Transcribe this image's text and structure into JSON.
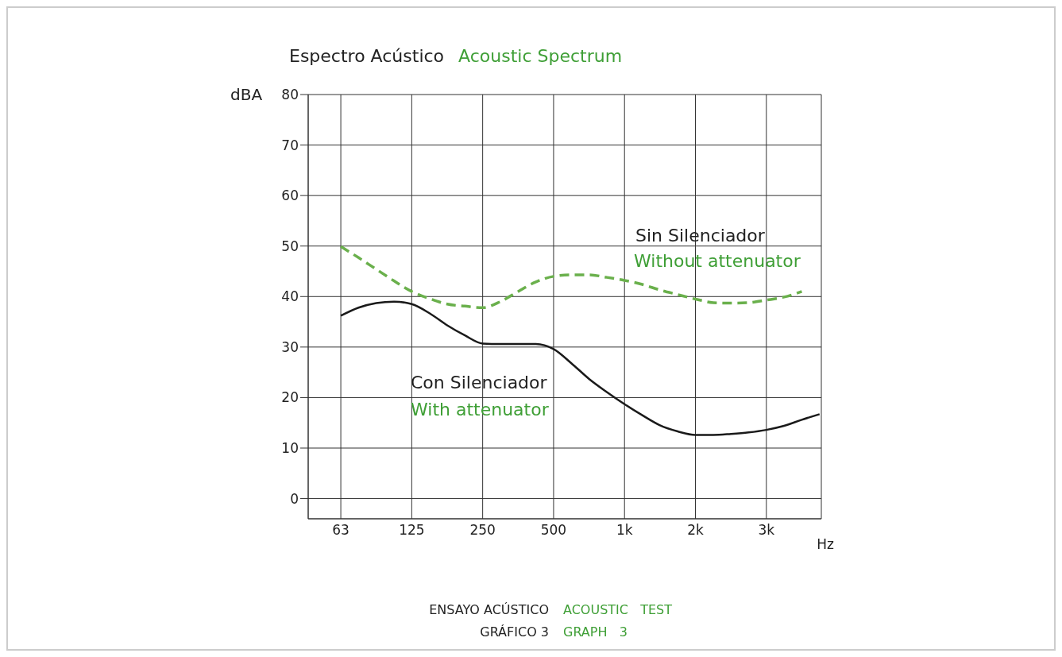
{
  "chart_data": {
    "type": "line",
    "title": "Espectro Acústico",
    "subtitle": "Acoustic Spectrum",
    "ylabel": "dBA",
    "xlabel": "Hz",
    "categories": [
      "63",
      null,
      null,
      null,
      "125",
      null,
      null,
      null,
      "250",
      null,
      null,
      null,
      "500",
      null,
      null,
      null,
      "1k",
      null,
      null,
      null,
      "2k",
      null,
      null,
      null,
      "3k",
      null,
      null,
      null
    ],
    "ylim": [
      -4,
      80
    ],
    "yticks": [
      0,
      10,
      20,
      30,
      40,
      50,
      60,
      70,
      80
    ],
    "grid": true,
    "series": [
      {
        "color": "#6ab04c",
        "line_style": "dashed",
        "values": [
          49.9,
          47.7,
          45.4,
          43.1,
          41.0,
          39.6,
          38.5,
          38.1,
          37.8,
          39.0,
          41.0,
          42.9,
          44.0,
          44.3,
          44.3,
          43.8,
          43.2,
          42.4,
          41.3,
          40.4,
          39.5,
          38.8,
          38.7,
          38.8,
          39.3,
          39.9,
          41.0,
          null
        ]
      },
      {
        "color": "#1a1a1a",
        "line_style": "solid",
        "values": [
          36.2,
          37.8,
          38.7,
          39.0,
          38.5,
          36.7,
          34.3,
          32.3,
          30.7,
          30.6,
          30.6,
          30.6,
          29.6,
          26.8,
          23.7,
          21.1,
          18.7,
          16.5,
          14.5,
          13.3,
          12.6,
          12.6,
          12.8,
          13.1,
          13.6,
          14.4,
          15.6,
          16.7
        ]
      }
    ],
    "annotations": [
      "Sin Silenciador",
      "Without attenuator",
      "Con Silenciador",
      "With attenuator",
      "ENSAYO ACÚSTICO",
      "ACOUSTIC   TEST",
      "GRÁFICO 3",
      "GRAPH   3"
    ]
  }
}
